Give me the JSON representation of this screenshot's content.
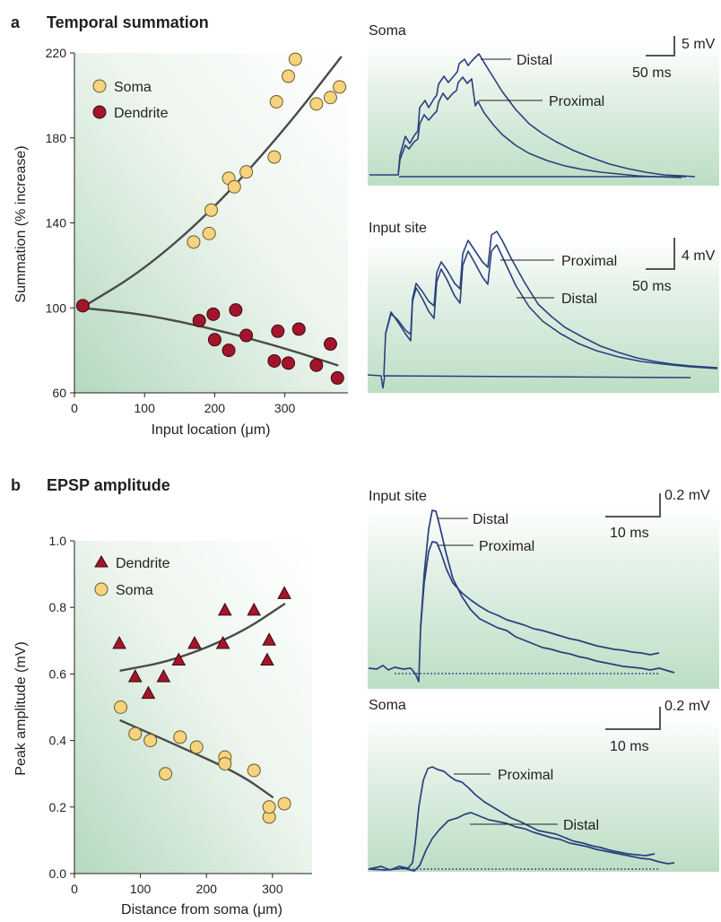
{
  "panel_a": {
    "letter": "a",
    "title": "Temporal summation",
    "scatter": {
      "ylabel": "Summation (% increase)",
      "xlabel_pre": "Input location (",
      "xlabel_mu": "μ",
      "xlabel_post": "m)",
      "legend": [
        "Soma",
        "Dendrite"
      ]
    },
    "trace_soma": {
      "title": "Soma",
      "labels": [
        "Distal",
        "Proximal"
      ],
      "scale_v": "5 mV",
      "scale_t": "50 ms"
    },
    "trace_input": {
      "title": "Input site",
      "labels": [
        "Proximal",
        "Distal"
      ],
      "scale_v": "4 mV",
      "scale_t": "50 ms"
    }
  },
  "panel_b": {
    "letter": "b",
    "title": "EPSP amplitude",
    "scatter": {
      "ylabel": "Peak amplitude (mV)",
      "xlabel_pre": "Distance from soma (",
      "xlabel_mu": "μ",
      "xlabel_post": "m)",
      "legend": [
        "Dendrite",
        "Soma"
      ]
    },
    "trace_input": {
      "title": "Input site",
      "labels": [
        "Distal",
        "Proximal"
      ],
      "scale_v": "0.2 mV",
      "scale_t": "10 ms"
    },
    "trace_soma": {
      "title": "Soma",
      "labels": [
        "Proximal",
        "Distal"
      ],
      "scale_v": "0.2 mV",
      "scale_t": "10 ms"
    }
  },
  "colors": {
    "soma_fill": "#f6d37e",
    "dendrite_fill": "#a3152b",
    "trace": "#2a3f7e",
    "fit_line": "#4a4a4a",
    "bg_green": "#c4e0cb"
  },
  "chart_data": [
    {
      "type": "scatter",
      "title": "Temporal summation",
      "xlabel": "Input location (μm)",
      "ylabel": "Summation (% increase)",
      "xlim": [
        0,
        390
      ],
      "ylim": [
        60,
        220
      ],
      "xticks": [
        0,
        100,
        200,
        300
      ],
      "yticks": [
        60,
        100,
        140,
        180,
        220
      ],
      "legend_position": "top-left",
      "series": [
        {
          "name": "Soma",
          "color": "#f6d37e",
          "x": [
            170,
            192,
            195,
            220,
            228,
            245,
            285,
            288,
            305,
            315,
            345,
            365,
            378
          ],
          "y": [
            131,
            135,
            146,
            161,
            157,
            164,
            171,
            197,
            209,
            217,
            196,
            199,
            204
          ],
          "fit": [
            [
              10,
              100
            ],
            [
              100,
              118
            ],
            [
              200,
              147
            ],
            [
              300,
              184
            ],
            [
              380,
              218
            ]
          ]
        },
        {
          "name": "Dendrite",
          "color": "#a3152b",
          "x": [
            12,
            178,
            198,
            200,
            220,
            230,
            245,
            285,
            290,
            305,
            320,
            345,
            365,
            375
          ],
          "y": [
            101,
            94,
            97,
            85,
            80,
            99,
            87,
            75,
            89,
            74,
            90,
            73,
            83,
            67
          ],
          "fit": [
            [
              10,
              100
            ],
            [
              100,
              97
            ],
            [
              200,
              90
            ],
            [
              300,
              81
            ],
            [
              375,
              73
            ]
          ]
        }
      ]
    },
    {
      "type": "scatter",
      "title": "EPSP amplitude",
      "xlabel": "Distance from soma (μm)",
      "ylabel": "Peak amplitude (mV)",
      "xlim": [
        0,
        360
      ],
      "ylim": [
        0,
        1.0
      ],
      "xticks": [
        0,
        100,
        200,
        300
      ],
      "yticks": [
        0.0,
        0.2,
        0.4,
        0.6,
        0.8,
        1.0
      ],
      "legend_position": "top-left",
      "series": [
        {
          "name": "Dendrite",
          "color": "#a3152b",
          "x": [
            68,
            92,
            112,
            135,
            158,
            182,
            225,
            228,
            272,
            292,
            295,
            318
          ],
          "y": [
            0.69,
            0.59,
            0.54,
            0.59,
            0.64,
            0.69,
            0.69,
            0.79,
            0.79,
            0.64,
            0.7,
            0.84
          ],
          "fit": [
            [
              70,
              0.61
            ],
            [
              150,
              0.64
            ],
            [
              250,
              0.72
            ],
            [
              318,
              0.81
            ]
          ]
        },
        {
          "name": "Soma",
          "color": "#f6d37e",
          "x": [
            70,
            92,
            115,
            138,
            160,
            185,
            228,
            228,
            272,
            295,
            295,
            318
          ],
          "y": [
            0.5,
            0.42,
            0.4,
            0.3,
            0.41,
            0.38,
            0.35,
            0.33,
            0.31,
            0.17,
            0.2,
            0.21
          ],
          "fit": [
            [
              70,
              0.46
            ],
            [
              150,
              0.39
            ],
            [
              250,
              0.3
            ],
            [
              300,
              0.23
            ]
          ]
        }
      ]
    }
  ]
}
